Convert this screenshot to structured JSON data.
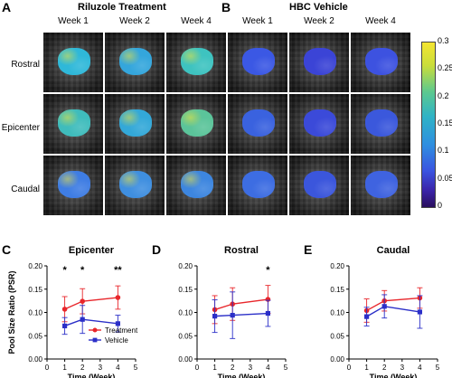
{
  "panels": {
    "A": "A",
    "B": "B",
    "C": "C",
    "D": "D",
    "E": "E"
  },
  "groups": {
    "riluzole": "Riluzole Treatment",
    "hbc": "HBC Vehicle"
  },
  "weeks": [
    "Week 1",
    "Week 2",
    "Week 4"
  ],
  "rows": [
    "Rostral",
    "Epicenter",
    "Caudal"
  ],
  "colorbar": {
    "ticks": [
      "0.3",
      "0.25",
      "0.2",
      "0.15",
      "0.1",
      "0.05",
      "0"
    ],
    "colors": [
      "#f4e531",
      "#c9dd3b",
      "#3fc6b2",
      "#2fa0dc",
      "#3a6ee8",
      "#3a3cc9",
      "#2a0f5e"
    ]
  },
  "map_colors": {
    "riluzole": [
      [
        "#2fb8d9",
        "#34a6dc",
        "#3ec3c0"
      ],
      [
        "#3fbcbc",
        "#33a8d8",
        "#5bc49a"
      ],
      [
        "#3f7de3",
        "#3f8fe0",
        "#3d86df"
      ]
    ],
    "hbc": [
      [
        "#3b58e4",
        "#3b44d6",
        "#3d52e0"
      ],
      [
        "#3a62df",
        "#3b4ad9",
        "#3b58dc"
      ],
      [
        "#3d6de2",
        "#3b56dc",
        "#3f63e0"
      ]
    ]
  },
  "chart_data": [
    {
      "type": "line",
      "title": "Epicenter",
      "xlabel": "Time (Week)",
      "ylabel": "Pool Size Ratio (PSR)",
      "xlim": [
        0,
        5
      ],
      "ylim": [
        0,
        0.2
      ],
      "xticks": [
        "0",
        "1",
        "2",
        "3",
        "4",
        "5"
      ],
      "yticks": [
        "0.00",
        "0.05",
        "0.10",
        "0.15",
        "0.20"
      ],
      "x": [
        1,
        2,
        4
      ],
      "series": [
        {
          "name": "Treatment",
          "values": [
            0.107,
            0.124,
            0.132
          ],
          "err": [
            0.027,
            0.027,
            0.025
          ],
          "color": "#e8262b"
        },
        {
          "name": "Vehicle",
          "values": [
            0.071,
            0.085,
            0.076
          ],
          "err": [
            0.018,
            0.03,
            0.018
          ],
          "color": "#2b2fc8"
        }
      ],
      "annotations": [
        {
          "x": 1,
          "text": "*"
        },
        {
          "x": 2,
          "text": "*"
        },
        {
          "x": 4,
          "text": "**"
        }
      ],
      "legend": "bottom-right"
    },
    {
      "type": "line",
      "title": "Rostral",
      "xlabel": "Time (Week)",
      "ylabel": "",
      "xlim": [
        0,
        5
      ],
      "ylim": [
        0,
        0.2
      ],
      "xticks": [
        "0",
        "1",
        "2",
        "3",
        "4",
        "5"
      ],
      "yticks": [
        "0.00",
        "0.05",
        "0.10",
        "0.15",
        "0.20"
      ],
      "x": [
        1,
        2,
        4
      ],
      "series": [
        {
          "name": "Treatment",
          "values": [
            0.106,
            0.118,
            0.128
          ],
          "err": [
            0.03,
            0.035,
            0.03
          ],
          "color": "#e8262b"
        },
        {
          "name": "Vehicle",
          "values": [
            0.092,
            0.094,
            0.098
          ],
          "err": [
            0.035,
            0.05,
            0.028
          ],
          "color": "#2b2fc8"
        }
      ],
      "annotations": [
        {
          "x": 4,
          "text": "*"
        }
      ]
    },
    {
      "type": "line",
      "title": "Caudal",
      "xlabel": "Time (Week)",
      "ylabel": "",
      "xlim": [
        0,
        5
      ],
      "ylim": [
        0,
        0.2
      ],
      "xticks": [
        "0",
        "1",
        "2",
        "3",
        "4",
        "5"
      ],
      "yticks": [
        "0.00",
        "0.05",
        "0.10",
        "0.15",
        "0.20"
      ],
      "x": [
        1,
        2,
        4
      ],
      "series": [
        {
          "name": "Treatment",
          "values": [
            0.104,
            0.125,
            0.131
          ],
          "err": [
            0.025,
            0.022,
            0.022
          ],
          "color": "#e8262b"
        },
        {
          "name": "Vehicle",
          "values": [
            0.091,
            0.113,
            0.101
          ],
          "err": [
            0.02,
            0.025,
            0.035
          ],
          "color": "#2b2fc8"
        }
      ],
      "annotations": []
    }
  ]
}
